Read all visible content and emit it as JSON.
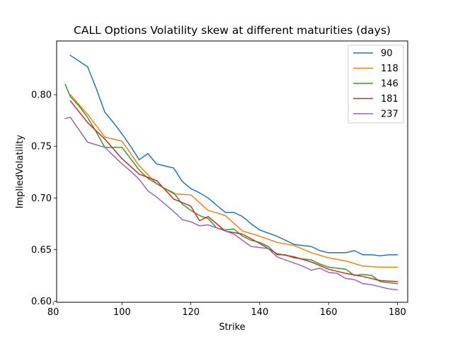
{
  "chart_data": {
    "type": "line",
    "title": "CALL Options Volatility skew at different maturities (days)",
    "xlabel": "Strike",
    "ylabel": "ImpliedVolatility",
    "xlim": [
      81,
      183
    ],
    "ylim": [
      0.599,
      0.852
    ],
    "xticks": [
      80,
      100,
      120,
      140,
      160,
      180
    ],
    "yticks": [
      0.6,
      0.65,
      0.7,
      0.75,
      0.8
    ],
    "xtick_labels": [
      "80",
      "100",
      "120",
      "140",
      "160",
      "180"
    ],
    "ytick_labels": [
      "0.60",
      "0.65",
      "0.70",
      "0.75",
      "0.80"
    ],
    "grid": false,
    "legend_position": "top-right",
    "series": [
      {
        "name": "90",
        "color": "#1f77b4",
        "x": [
          85,
          90,
          92.5,
          95,
          97.5,
          100,
          102.5,
          105,
          107.5,
          110,
          112.5,
          115,
          117.5,
          120,
          122.5,
          125,
          127.5,
          130,
          132.5,
          135,
          137.5,
          140,
          142.5,
          145,
          147.5,
          150,
          152.5,
          155,
          157.5,
          160,
          162.5,
          165,
          167.5,
          170,
          172.5,
          175,
          177.5,
          180
        ],
        "y": [
          0.838,
          0.827,
          0.806,
          0.783,
          0.773,
          0.762,
          0.75,
          0.737,
          0.743,
          0.733,
          0.731,
          0.729,
          0.716,
          0.709,
          0.705,
          0.7,
          0.693,
          0.686,
          0.686,
          0.682,
          0.675,
          0.669,
          0.666,
          0.663,
          0.659,
          0.655,
          0.654,
          0.653,
          0.649,
          0.647,
          0.647,
          0.647,
          0.649,
          0.645,
          0.645,
          0.644,
          0.645,
          0.645
        ]
      },
      {
        "name": "118",
        "color": "#ff7f0e",
        "x": [
          85,
          90,
          95,
          100,
          105,
          110,
          115,
          120,
          125,
          130,
          135,
          140,
          145,
          150,
          155,
          160,
          165,
          170,
          175,
          180
        ],
        "y": [
          0.8,
          0.781,
          0.759,
          0.755,
          0.731,
          0.714,
          0.704,
          0.703,
          0.688,
          0.683,
          0.668,
          0.663,
          0.657,
          0.654,
          0.647,
          0.642,
          0.639,
          0.634,
          0.633,
          0.633
        ]
      },
      {
        "name": "146",
        "color": "#2ca02c",
        "x": [
          83.5,
          85,
          87.5,
          90,
          92.5,
          95,
          97.5,
          100,
          102.5,
          105,
          107.5,
          110,
          112.5,
          115,
          117.5,
          120,
          122.5,
          125,
          127.5,
          130,
          132.5,
          135,
          137.5,
          140,
          142.5,
          145,
          147.5,
          150,
          152.5,
          155,
          157.5,
          160,
          162.5,
          165,
          167.5,
          170,
          172.5,
          175,
          177.5,
          180
        ],
        "y": [
          0.81,
          0.798,
          0.789,
          0.778,
          0.764,
          0.749,
          0.749,
          0.749,
          0.738,
          0.727,
          0.719,
          0.714,
          0.709,
          0.705,
          0.694,
          0.688,
          0.683,
          0.68,
          0.671,
          0.669,
          0.67,
          0.663,
          0.659,
          0.657,
          0.653,
          0.645,
          0.645,
          0.642,
          0.641,
          0.64,
          0.636,
          0.633,
          0.632,
          0.631,
          0.625,
          0.626,
          0.625,
          0.619,
          0.618,
          0.617
        ]
      },
      {
        "name": "181",
        "color": "#d62728",
        "x": [
          85,
          90,
          95,
          100,
          105,
          110,
          115,
          120,
          122.5,
          125,
          130,
          135,
          140,
          145,
          150,
          155,
          160,
          165,
          170,
          175,
          180
        ],
        "y": [
          0.794,
          0.773,
          0.757,
          0.738,
          0.723,
          0.717,
          0.699,
          0.692,
          0.678,
          0.682,
          0.668,
          0.665,
          0.656,
          0.646,
          0.643,
          0.638,
          0.631,
          0.627,
          0.624,
          0.62,
          0.619
        ]
      },
      {
        "name": "237",
        "color": "#9467bd",
        "x": [
          83.5,
          85,
          90,
          95,
          97.5,
          100,
          102.5,
          105,
          107.5,
          110,
          112.5,
          115,
          117.5,
          120,
          122.5,
          125,
          127.5,
          130,
          132.5,
          135,
          137.5,
          140,
          142.5,
          145,
          147.5,
          150,
          152.5,
          155,
          157.5,
          160,
          162.5,
          165,
          167.5,
          170,
          172.5,
          175,
          177.5,
          180
        ],
        "y": [
          0.777,
          0.778,
          0.754,
          0.749,
          0.741,
          0.733,
          0.726,
          0.718,
          0.707,
          0.701,
          0.694,
          0.687,
          0.679,
          0.677,
          0.673,
          0.674,
          0.671,
          0.668,
          0.665,
          0.659,
          0.653,
          0.652,
          0.651,
          0.643,
          0.64,
          0.637,
          0.634,
          0.63,
          0.632,
          0.628,
          0.627,
          0.622,
          0.621,
          0.617,
          0.616,
          0.614,
          0.612,
          0.611
        ]
      }
    ]
  }
}
